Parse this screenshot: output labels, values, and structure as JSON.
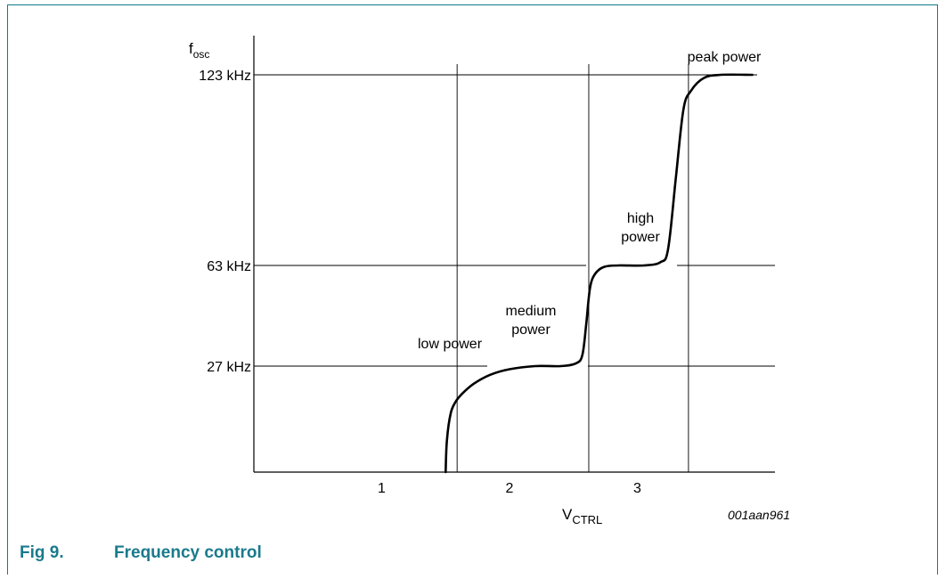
{
  "chart_data": {
    "type": "line",
    "y_axis_label": {
      "main": "f",
      "sub": "osc"
    },
    "x_axis_label": {
      "main": "V",
      "sub": "CTRL"
    },
    "figure_id": "001aan961",
    "x_ticks": [
      {
        "value": 1,
        "label": "1"
      },
      {
        "value": 2,
        "label": "2"
      },
      {
        "value": 3,
        "label": "3"
      }
    ],
    "y_ticks": [
      {
        "value": 27,
        "label": "27 kHz"
      },
      {
        "value": 63,
        "label": "63 kHz"
      },
      {
        "value": 123,
        "label": "123 kHz"
      }
    ],
    "x_range": [
      0,
      3.93
    ],
    "y_range": [
      0,
      123
    ],
    "grid_x": [
      1.59,
      2.62,
      3.4
    ],
    "annotations": [
      {
        "lines": [
          "low power"
        ]
      },
      {
        "lines": [
          "medium",
          "power"
        ]
      },
      {
        "lines": [
          "high",
          "power"
        ]
      },
      {
        "lines": [
          "peak power"
        ]
      }
    ],
    "curve": [
      [
        1.5,
        0
      ],
      [
        1.51,
        8
      ],
      [
        1.54,
        15
      ],
      [
        1.58,
        18
      ],
      [
        1.63,
        20
      ],
      [
        1.72,
        22.5
      ],
      [
        1.85,
        24.8
      ],
      [
        2.0,
        26.2
      ],
      [
        2.2,
        27
      ],
      [
        2.4,
        27
      ],
      [
        2.52,
        28
      ],
      [
        2.57,
        31
      ],
      [
        2.6,
        42
      ],
      [
        2.63,
        55
      ],
      [
        2.67,
        60
      ],
      [
        2.74,
        62.5
      ],
      [
        2.85,
        63
      ],
      [
        3.05,
        63
      ],
      [
        3.18,
        64
      ],
      [
        3.24,
        68
      ],
      [
        3.3,
        90
      ],
      [
        3.36,
        112
      ],
      [
        3.42,
        118
      ],
      [
        3.52,
        122
      ],
      [
        3.65,
        123
      ],
      [
        3.9,
        123
      ]
    ]
  },
  "caption": {
    "figure_number": "Fig 9.",
    "title": "Frequency control"
  }
}
